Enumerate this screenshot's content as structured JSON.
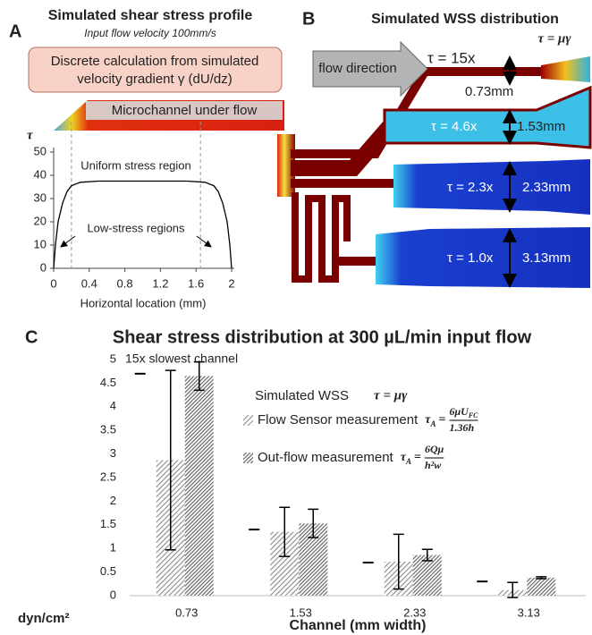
{
  "panel_labels": [
    "A",
    "B",
    "C"
  ],
  "diagram": {
    "title": "Simulated WSS distribution",
    "formula": "τ = μγ",
    "arrow_label": "flow direction",
    "channels": [
      {
        "shear": "τ = 15x",
        "width": "0.73mm"
      },
      {
        "shear": "τ = 4.6x",
        "width": "1.53mm"
      },
      {
        "shear": "τ = 2.3x",
        "width": "2.33mm"
      },
      {
        "shear": "τ = 1.0x",
        "width": "3.13mm"
      }
    ]
  },
  "chart_data": [
    {
      "type": "line",
      "title": "Simulated shear stress profile",
      "subtitle": "Input flow velocity 100mm/s",
      "annotations": {
        "box": [
          "Discrete calculation from simulated",
          "velocity gradient γ (dU/dz)"
        ],
        "channel_label": "Microchannel  under flow",
        "upper": "Uniform stress region",
        "lower": "Low-stress regions"
      },
      "ylabel": "τ",
      "xlabel": "Horizontal location (mm)",
      "x": [
        0,
        0.02,
        0.05,
        0.1,
        0.15,
        0.2,
        0.3,
        0.5,
        1.0,
        1.5,
        1.7,
        1.8,
        1.85,
        1.9,
        1.95,
        1.98,
        2.0
      ],
      "values": [
        0,
        10,
        20,
        28,
        33,
        35.5,
        37,
        37.5,
        37.5,
        37.5,
        37,
        35.5,
        33,
        28,
        20,
        10,
        0
      ],
      "color": "#000000",
      "xlim": [
        0,
        2
      ],
      "xticks": [
        0,
        0.4,
        0.8,
        1.2,
        1.6,
        2
      ],
      "ylim": [
        0,
        50
      ],
      "yticks": [
        0,
        10,
        20,
        30,
        40,
        50
      ],
      "vlines": [
        0.2,
        1.65
      ]
    },
    {
      "type": "bar",
      "title": "Shear stress distribution at 300 µL/min input flow",
      "annotation": "15x slowest channel",
      "ylabel": "dyn/cm²",
      "xlabel": "Channel (mm width)",
      "categories": [
        "0.73",
        "1.53",
        "2.33",
        "3.13"
      ],
      "ylim": [
        0,
        5
      ],
      "yticks": [
        0,
        0.5,
        1,
        1.5,
        2,
        2.5,
        3,
        3.5,
        4,
        4.5,
        5
      ],
      "series": [
        {
          "name": "Simulated WSS",
          "style": "dash",
          "color": "#000000",
          "values": [
            4.7,
            1.4,
            0.7,
            0.3
          ],
          "formula": "τ = μγ"
        },
        {
          "name": "Flow Sensor measurement",
          "style": "hatch",
          "color": "#8a8a8a",
          "values": [
            2.87,
            1.35,
            0.72,
            0.12
          ],
          "errors": [
            1.9,
            0.52,
            0.58,
            0.16
          ],
          "formula": {
            "lhs": "τ",
            "lhs_sub": "A",
            "eq": "=",
            "num": "6μU",
            "num_sub": "FC",
            "den": "1.36h"
          }
        },
        {
          "name": "Out-flow measurement",
          "style": "hatch",
          "color": "#666666",
          "values": [
            4.65,
            1.53,
            0.86,
            0.38
          ],
          "errors": [
            0.3,
            0.3,
            0.12,
            0.02
          ],
          "formula": {
            "lhs": "τ",
            "lhs_sub": "A",
            "eq": "=",
            "num": "6Qμ",
            "den": "h²w"
          }
        }
      ]
    }
  ]
}
